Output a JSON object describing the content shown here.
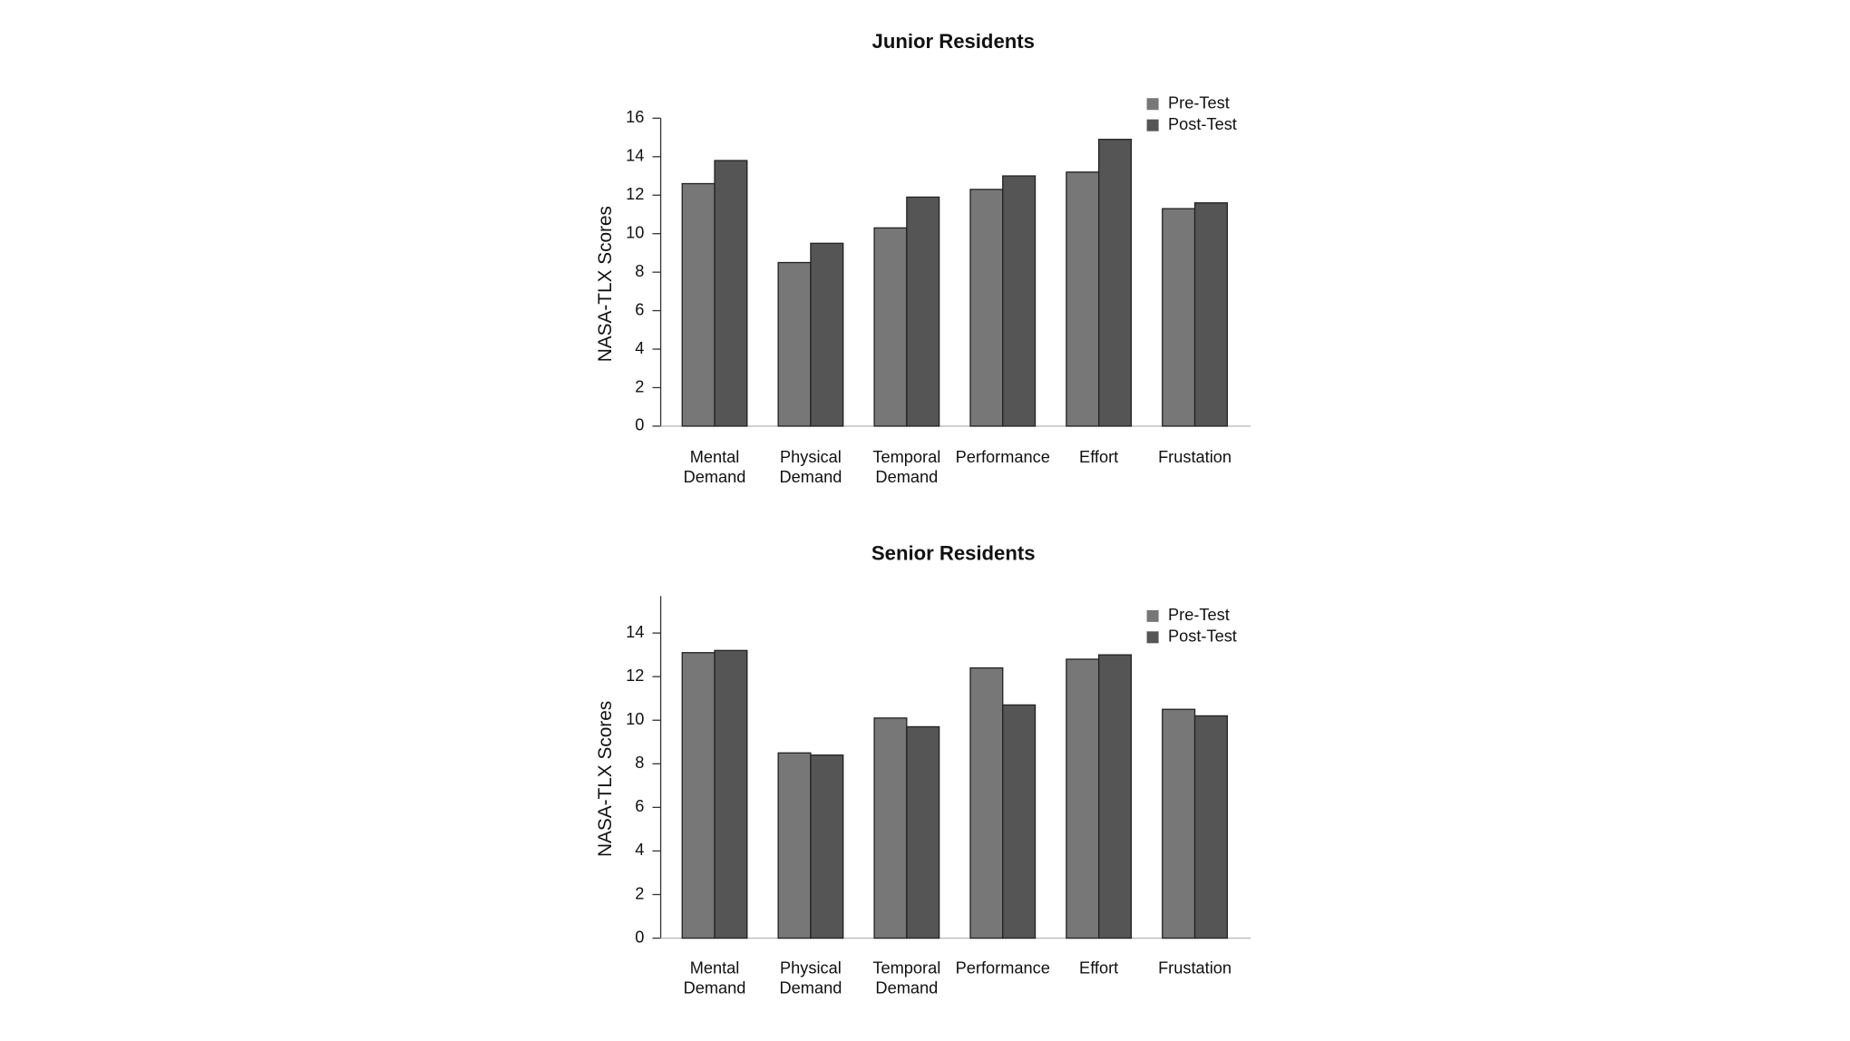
{
  "chart_data": [
    {
      "type": "bar",
      "title": "Junior Residents",
      "y_label": "NASA-TLX Scores",
      "categories": [
        "Mental Demand",
        "Physical Demand",
        "Temporal Demand",
        "Performance",
        "Effort",
        "Frustation"
      ],
      "series": [
        {
          "name": "Pre-Test",
          "color": "#777777",
          "values": [
            12.6,
            8.5,
            10.3,
            12.3,
            13.2,
            11.3
          ]
        },
        {
          "name": "Post-Test",
          "color": "#555555",
          "values": [
            13.8,
            9.5,
            11.9,
            13.0,
            14.9,
            11.6
          ]
        }
      ],
      "ylim": [
        0,
        16
      ],
      "yticks": [
        0,
        2,
        4,
        6,
        8,
        10,
        12,
        14,
        16
      ],
      "legend": "upper right"
    },
    {
      "type": "bar",
      "title": "Senior Residents",
      "y_label": "NASA-TLX Scores",
      "categories": [
        "Mental Demand",
        "Physical Demand",
        "Temporal Demand",
        "Performance",
        "Effort",
        "Frustation"
      ],
      "series": [
        {
          "name": "Pre-Test",
          "color": "#777777",
          "values": [
            13.1,
            8.5,
            10.1,
            12.4,
            12.8,
            10.5
          ]
        },
        {
          "name": "Post-Test",
          "color": "#555555",
          "values": [
            13.2,
            8.4,
            9.7,
            10.7,
            13.0,
            10.2
          ]
        }
      ],
      "ylim": [
        0,
        15.7
      ],
      "yticks": [
        0,
        2,
        4,
        6,
        8,
        10,
        12,
        14
      ],
      "legend": "upper right"
    }
  ]
}
